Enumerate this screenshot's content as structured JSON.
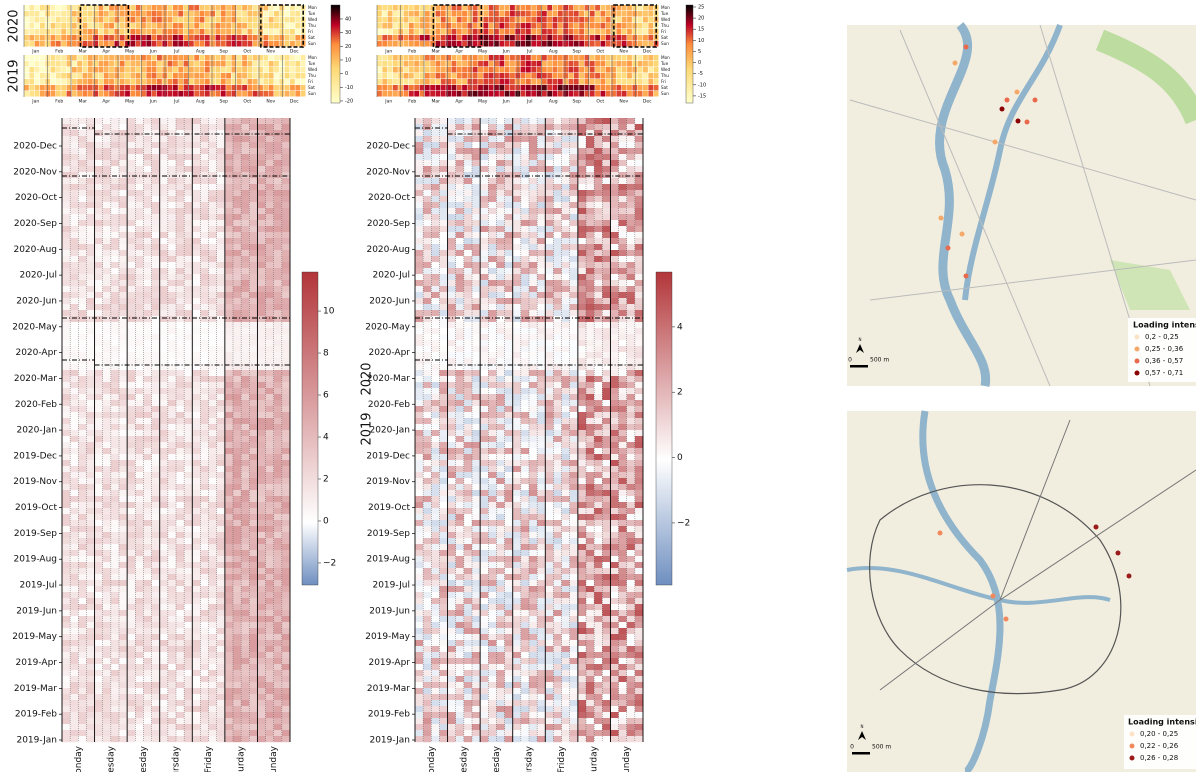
{
  "calendars": [
    {
      "years": [
        "2020",
        "2019"
      ],
      "colorbar_lim": [
        -21.5,
        50.2
      ],
      "colorbar_ticks": [
        40,
        30,
        20,
        10,
        0,
        -10,
        -20
      ]
    },
    {
      "years": [
        "2020",
        "2019"
      ],
      "colorbar_lim": [
        -18.2,
        25.9
      ],
      "colorbar_ticks": [
        25,
        20,
        15,
        10,
        5,
        0,
        -5,
        -10,
        -15
      ]
    }
  ],
  "months": [
    "Jan",
    "Feb",
    "Mar",
    "Apr",
    "May",
    "Jun",
    "Jul",
    "Aug",
    "Sep",
    "Oct",
    "Nov",
    "Dec"
  ],
  "weekdays": [
    "Mon",
    "Tue",
    "Wed",
    "Thu",
    "Fri",
    "Sat",
    "Sun"
  ],
  "heatmaps": [
    {
      "colorbar_lim": [
        -3.05,
        11.86
      ],
      "colorbar_ticks": [
        10,
        8,
        6,
        4,
        2,
        0,
        {
          "value": -2,
          "label": "−2"
        }
      ]
    },
    {
      "colorbar_lim": [
        -3.9,
        5.68
      ],
      "colorbar_ticks": [
        4,
        2,
        0,
        {
          "value": -2,
          "label": "−2"
        }
      ]
    }
  ],
  "heatmap_dates": [
    "2020-Dec",
    "2020-Nov",
    "2020-Oct",
    "2020-Sep",
    "2020-Aug",
    "2020-Jul",
    "2020-Jun",
    "2020-May",
    "2020-Apr",
    "2020-Mar",
    "2020-Feb",
    "2020-Jan",
    "2019-Dec",
    "2019-Nov",
    "2019-Oct",
    "2019-Sep",
    "2019-Aug",
    "2019-Jul",
    "2019-Jun",
    "2019-May",
    "2019-Apr",
    "2019-Mar",
    "2019-Feb",
    "2019-Jan"
  ],
  "heatmap_days": [
    "londay",
    "uesday",
    "nesday",
    "ursday",
    "Friday",
    "turday",
    "unday"
  ],
  "maps": [
    {
      "legend_title": "Loading intensity",
      "legend": [
        "0,2 - 0,25",
        "0,25 - 0,36",
        "0,36 - 0,57",
        "0,57 - 0,71"
      ],
      "scale": [
        "0",
        "500 m"
      ],
      "north": "N"
    },
    {
      "legend_title": "Loading intensity",
      "legend": [
        "0,20 - 0,25",
        "0,22 - 0,26",
        "0,26 - 0,28"
      ],
      "scale": [
        "0",
        "500 m"
      ],
      "north": "N"
    }
  ]
}
